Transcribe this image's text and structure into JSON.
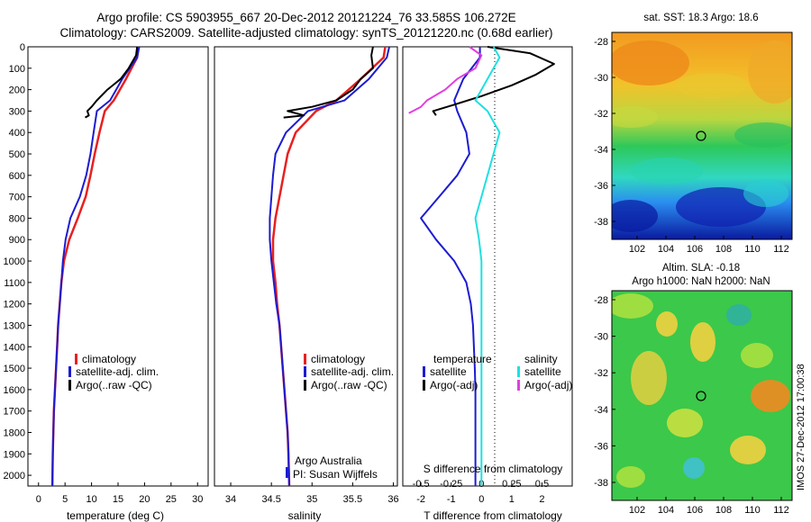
{
  "header": {
    "title_line1": "Argo profile: CS 5903955_667 20-Dec-2012 20121224_76 33.585S 106.272E",
    "title_line2": "Climatology: CARS2009. Satellite-adjusted climatology: synTS_20121220.nc (0.68d earlier)"
  },
  "side_label": "IMOS 27-Dec-2012 17:00:38",
  "colors": {
    "climatology": "#e82020",
    "satellite": "#1c1cd0",
    "argo": "#000000",
    "sal_satellite": "#20e0e0",
    "sal_argo": "#e040e0"
  },
  "depth_ticks": [
    "0",
    "100",
    "200",
    "300",
    "400",
    "500",
    "600",
    "700",
    "800",
    "900",
    "1000",
    "1100",
    "1200",
    "1300",
    "1400",
    "1500",
    "1600",
    "1700",
    "1800",
    "1900",
    "2000"
  ],
  "temp_panel": {
    "xlabel": "temperature (deg C)",
    "xticks": [
      "0",
      "5",
      "10",
      "15",
      "20",
      "25",
      "30"
    ],
    "legend": [
      "climatology",
      "satellite-adj. clim.",
      "Argo(..raw -QC)"
    ]
  },
  "sal_panel": {
    "xlabel": "salinity",
    "xticks": [
      "34",
      "34.5",
      "35",
      "35.5",
      "36"
    ],
    "legend": [
      "climatology",
      "satellite-adj. clim.",
      "Argo(..raw -QC)"
    ],
    "note1": "Argo Australia",
    "note2": "PI: Susan Wijffels"
  },
  "diff_panel": {
    "xlabel": "T difference from climatology",
    "top_label": "S difference from climatology",
    "xticks": [
      "-2",
      "-1",
      "0",
      "1",
      "2"
    ],
    "sticks": [
      "-0.5",
      "-0.25",
      "0",
      "0.25",
      "0.5"
    ],
    "legend_temp_head": "temperature",
    "legend_sal_head": "salinity",
    "legend_temp": [
      "satellite",
      "Argo(-adj)"
    ],
    "legend_sal": [
      "satellite",
      "Argo(-adj)"
    ]
  },
  "map_sst": {
    "title": "sat. SST: 18.3 Argo: 18.6",
    "yticks": [
      "-28",
      "-30",
      "-32",
      "-34",
      "-36",
      "-38"
    ],
    "xticks": [
      "102",
      "104",
      "106",
      "108",
      "110",
      "112"
    ]
  },
  "map_sla": {
    "title1": "Altim. SLA: -0.18",
    "title2": "Argo h1000: NaN h2000: NaN",
    "yticks": [
      "-28",
      "-30",
      "-32",
      "-34",
      "-36",
      "-38"
    ],
    "xticks": [
      "102",
      "104",
      "106",
      "108",
      "110",
      "112"
    ]
  },
  "chart_data": [
    {
      "type": "line",
      "xlabel": "temperature (deg C)",
      "ylim": [
        2050,
        0
      ],
      "xlim": [
        -2,
        32
      ],
      "series": [
        {
          "name": "climatology",
          "x": [
            18.8,
            18.6,
            16.5,
            14.2,
            12.5,
            11.5,
            10.6,
            9.8,
            8.9,
            7.4,
            5.8,
            4.8,
            4.3,
            4.0,
            3.7,
            3.5,
            3.3,
            3.1,
            2.9,
            2.8,
            2.7,
            2.6
          ],
          "y": [
            0,
            50,
            150,
            250,
            300,
            400,
            500,
            600,
            700,
            800,
            900,
            1000,
            1100,
            1200,
            1300,
            1400,
            1500,
            1600,
            1700,
            1800,
            1900,
            2050
          ]
        },
        {
          "name": "satellite-adj. clim.",
          "x": [
            19.0,
            18.6,
            15.8,
            13.5,
            11.0,
            10.4,
            9.8,
            9.0,
            7.8,
            6.0,
            5.1,
            4.6,
            4.3,
            4.0,
            3.7,
            3.5,
            3.3,
            3.1,
            2.9,
            2.8,
            2.7,
            2.6
          ],
          "y": [
            0,
            50,
            150,
            250,
            300,
            400,
            500,
            600,
            700,
            800,
            900,
            1000,
            1100,
            1200,
            1300,
            1400,
            1500,
            1600,
            1700,
            1800,
            1900,
            2050
          ]
        },
        {
          "name": "Argo(..raw -QC)",
          "x": [
            18.6,
            18.4,
            17.0,
            15.5,
            13.0,
            11.0,
            10.0,
            9.2,
            9.5,
            8.8
          ],
          "y": [
            0,
            40,
            100,
            150,
            200,
            250,
            280,
            300,
            320,
            330
          ]
        }
      ]
    },
    {
      "type": "line",
      "xlabel": "salinity",
      "ylim": [
        2050,
        0
      ],
      "xlim": [
        33.8,
        36.05
      ],
      "series": [
        {
          "name": "climatology",
          "x": [
            35.9,
            35.88,
            35.6,
            35.3,
            35.05,
            34.8,
            34.7,
            34.65,
            34.6,
            34.55,
            34.52,
            34.52,
            34.55,
            34.57,
            34.6,
            34.62,
            34.64,
            34.66,
            34.68,
            34.7,
            34.71,
            34.72
          ],
          "y": [
            0,
            50,
            150,
            250,
            300,
            400,
            500,
            600,
            700,
            800,
            900,
            1000,
            1100,
            1200,
            1300,
            1400,
            1500,
            1600,
            1700,
            1800,
            1900,
            2050
          ]
        },
        {
          "name": "satellite-adj. clim.",
          "x": [
            35.95,
            35.92,
            35.7,
            35.4,
            34.95,
            34.68,
            34.55,
            34.52,
            34.5,
            34.48,
            34.48,
            34.5,
            34.53,
            34.56,
            34.6,
            34.62,
            34.64,
            34.66,
            34.68,
            34.7,
            34.71,
            34.72
          ],
          "y": [
            0,
            50,
            150,
            250,
            300,
            400,
            500,
            600,
            700,
            800,
            900,
            1000,
            1100,
            1200,
            1300,
            1400,
            1500,
            1600,
            1700,
            1800,
            1900,
            2050
          ]
        },
        {
          "name": "Argo(..raw -QC)",
          "x": [
            35.75,
            35.73,
            35.75,
            35.6,
            35.5,
            35.3,
            35.0,
            34.7,
            34.9,
            34.65
          ],
          "y": [
            0,
            40,
            100,
            150,
            200,
            250,
            280,
            300,
            320,
            330
          ]
        }
      ]
    },
    {
      "type": "line",
      "xlabel": "T difference from climatology",
      "ylim": [
        2050,
        0
      ],
      "xlim": [
        -2.6,
        3.0
      ],
      "series": [
        {
          "name": "temperature satellite",
          "x": [
            -0.05,
            -0.05,
            -0.6,
            -0.9,
            -0.8,
            -0.5,
            -0.4,
            -0.8,
            -1.4,
            -2.0,
            -1.5,
            -0.9,
            -0.5,
            -0.35,
            -0.28,
            -0.25,
            -0.22,
            -0.2,
            -0.2,
            -0.2,
            -0.2,
            -0.2
          ],
          "y": [
            0,
            50,
            150,
            250,
            300,
            400,
            500,
            600,
            700,
            800,
            900,
            1000,
            1100,
            1200,
            1300,
            1400,
            1500,
            1600,
            1700,
            1800,
            1900,
            2050
          ]
        },
        {
          "name": "temperature Argo(-adj)",
          "x": [
            0.2,
            1.6,
            2.4,
            1.8,
            1.0,
            0.0,
            -0.9,
            -1.6,
            -1.5
          ],
          "y": [
            0,
            30,
            80,
            130,
            180,
            230,
            270,
            300,
            320
          ]
        },
        {
          "name": "salinity satellite",
          "x": [
            0.1,
            0.15,
            0.05,
            -0.05,
            0.05,
            0.15,
            0.1,
            0.05,
            0.0,
            -0.05,
            -0.02,
            0.0,
            0.0,
            0.0,
            0.0,
            0.0,
            0.0,
            0.0,
            0.0,
            0.0,
            0.0,
            0.0
          ],
          "y": [
            0,
            50,
            150,
            250,
            300,
            400,
            500,
            600,
            700,
            800,
            900,
            1000,
            1100,
            1200,
            1300,
            1400,
            1500,
            1600,
            1700,
            1800,
            1900,
            2050
          ]
        },
        {
          "name": "salinity Argo(-adj)",
          "x": [
            -0.1,
            0.0,
            -0.05,
            -0.2,
            -0.3,
            -0.45,
            -0.5,
            -0.6
          ],
          "y": [
            0,
            40,
            100,
            150,
            200,
            250,
            280,
            310
          ]
        }
      ]
    }
  ]
}
